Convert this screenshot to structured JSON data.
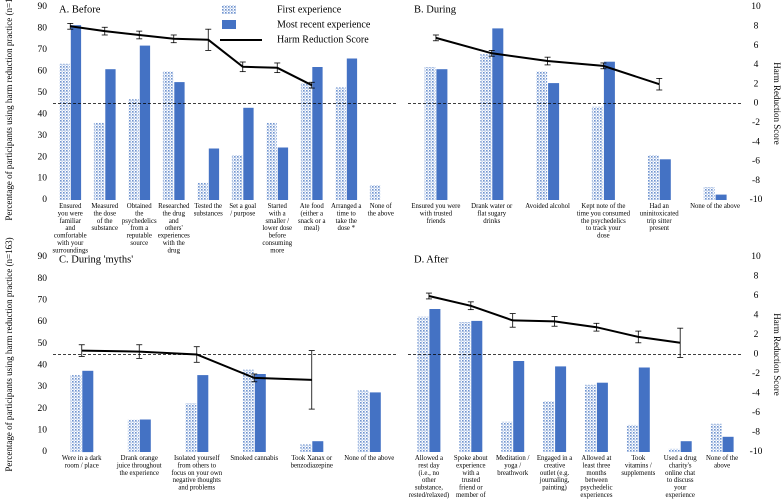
{
  "chart_data": [
    {
      "type": "bar",
      "title": "A. Before",
      "ylabel": "Percentage of participants using harm reduction practice (n=163)",
      "y2label": "Harm Reduction Score",
      "ylim": [
        0,
        90
      ],
      "y2lim": [
        -10,
        10
      ],
      "yticks": [
        "0",
        "10",
        "20",
        "30",
        "40",
        "50",
        "60",
        "70",
        "80",
        "90"
      ],
      "y2ticks": [
        "-10",
        "-8",
        "-6",
        "-4",
        "-2",
        "0",
        "2",
        "4",
        "6",
        "8",
        "10"
      ],
      "categories": [
        "Ensured you were familiar and comfortable with your surroundings",
        "Measured the dose of the substance",
        "Obtained the psychedelics from a reputable source",
        "Researched the drug and others' experiences with the drug",
        "Tested the substances",
        "Set a goal / purpose",
        "Started with a smaller / lower dose before consuming more",
        "Ate food (either a snack or a meal)",
        "Arranged a time to take the dose *",
        "None of the above"
      ],
      "series": [
        {
          "name": "First experience",
          "values": [
            63.5,
            36,
            47,
            60,
            8,
            21,
            36,
            54.5,
            52.5,
            7
          ]
        },
        {
          "name": "Most recent experience",
          "values": [
            81.5,
            61,
            72,
            55,
            24,
            43,
            24.5,
            62,
            66,
            null
          ]
        }
      ],
      "line": {
        "name": "Harm Reduction Score",
        "values": [
          8.0,
          7.5,
          7.1,
          6.7,
          6.6,
          3.8,
          3.7,
          1.9
        ],
        "errors": [
          0.3,
          0.4,
          0.4,
          0.4,
          1.1,
          0.5,
          0.5,
          0.3
        ]
      }
    },
    {
      "type": "bar",
      "title": "B. During",
      "ylabel": "",
      "y2label": "Harm Reduction Score",
      "ylim": [
        0,
        90
      ],
      "y2lim": [
        -10,
        10
      ],
      "yticks": [],
      "y2ticks": [
        "-10",
        "-8",
        "-6",
        "-4",
        "-2",
        "0",
        "2",
        "4",
        "6",
        "8",
        "10"
      ],
      "categories": [
        "Ensured you were with trusted friends",
        "Drank water or flat sugary drinks",
        "Avoided alcohol",
        "Kept note of the time you consumed the psychedelics to track your dose",
        "Had an uninitoxicated trip sitter present",
        "None of the above"
      ],
      "series": [
        {
          "name": "First experience",
          "values": [
            62,
            68,
            60,
            43.5,
            21,
            6
          ]
        },
        {
          "name": "Most recent experience",
          "values": [
            61,
            80,
            54.5,
            64.5,
            19,
            2.5
          ]
        }
      ],
      "line": {
        "name": "Harm Reduction Score",
        "values": [
          6.8,
          5.2,
          4.4,
          3.9,
          2.0
        ],
        "errors": [
          0.3,
          0.3,
          0.4,
          0.3,
          0.6
        ]
      }
    },
    {
      "type": "bar",
      "title": "C. During 'myths'",
      "ylabel": "Percentage of participants using harm reduction practice (n=163)",
      "y2label": "",
      "ylim": [
        0,
        90
      ],
      "y2lim": [
        -10,
        10
      ],
      "yticks": [
        "0",
        "10",
        "20",
        "30",
        "40",
        "50",
        "60",
        "70",
        "80",
        "90"
      ],
      "y2ticks": [],
      "categories": [
        "Were in a dark room / place",
        "Drank orange juice throughout the experience",
        "Isolated yourself from others to focus on your own negative thoughts and problems",
        "Smoked cannabis",
        "Took Xanax or benzodiazepine",
        "None of the above"
      ],
      "series": [
        {
          "name": "First experience",
          "values": [
            35.5,
            15,
            22.5,
            38,
            3.5,
            28.5
          ]
        },
        {
          "name": "Most recent experience",
          "values": [
            37.5,
            15,
            35.5,
            36,
            5,
            27.5
          ]
        }
      ],
      "line": {
        "name": "Harm Reduction Score",
        "values": [
          0.4,
          0.3,
          0.0,
          -2.4,
          -2.6
        ],
        "errors": [
          0.6,
          0.7,
          0.8,
          0.4,
          3.0
        ]
      }
    },
    {
      "type": "bar",
      "title": "D. After",
      "ylabel": "",
      "y2label": "Harm Reduction Score",
      "ylim": [
        0,
        90
      ],
      "y2lim": [
        -10,
        10
      ],
      "yticks": [],
      "y2ticks": [
        "-10",
        "-8",
        "-6",
        "-4",
        "-2",
        "0",
        "2",
        "4",
        "6",
        "8",
        "10"
      ],
      "categories": [
        "Allowed a rest day (i.e., no other substance, rested/relaxed)",
        "Spoke about experience with a trusted friend or member of the psychedelic community",
        "Meditation / yoga / breathwork",
        "Engaged in a creative outlet (e.g. journaling, painting)",
        "Allowed at least three months between psychedelic experiences",
        "Took vitamins / supplements",
        "Used a drug charity's online chat to discuss your experience",
        "None of the above"
      ],
      "series": [
        {
          "name": "First experience",
          "values": [
            62.5,
            60,
            14,
            23.5,
            31,
            12.5,
            1.5,
            13
          ]
        },
        {
          "name": "Most recent experience",
          "values": [
            66,
            60.5,
            42,
            39.5,
            32,
            39,
            5,
            7
          ]
        }
      ],
      "line": {
        "name": "Harm Reduction Score",
        "values": [
          6.0,
          5.0,
          3.5,
          3.4,
          2.8,
          1.8,
          1.2
        ],
        "errors": [
          0.3,
          0.4,
          0.7,
          0.5,
          0.4,
          0.6,
          1.5
        ]
      }
    }
  ],
  "legend": [
    "First experience",
    "Most recent experience",
    "Harm Reduction Score"
  ],
  "colors": {
    "first": "#7f9fd4",
    "recent": "#4472c4",
    "line": "#000000"
  }
}
